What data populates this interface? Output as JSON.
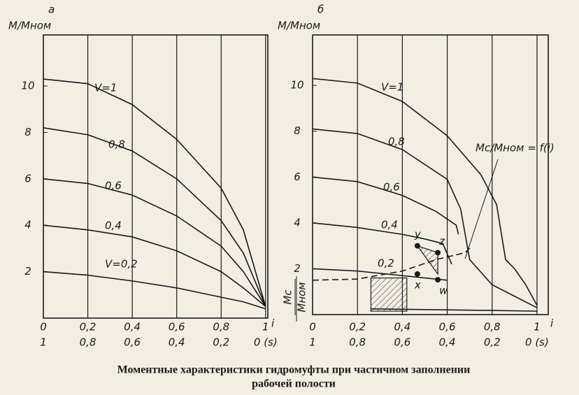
{
  "chart_data": [
    {
      "type": "line",
      "panel_label": "а",
      "ylabel": "M/Mном",
      "xlabel": "i",
      "xlim": [
        0,
        1.01
      ],
      "x2lim": [
        1,
        -0.01
      ],
      "ylim": [
        0,
        12.2
      ],
      "grid": "x",
      "xticks": [
        0,
        {
          "value": 0.2,
          "label": "0,2"
        },
        {
          "value": 0.4,
          "label": "0,4"
        },
        {
          "value": 0.6,
          "label": "0,6"
        },
        {
          "value": 0.8,
          "label": "0,8"
        },
        1
      ],
      "x2ticks": [
        1,
        {
          "value": 0.8,
          "label": "0,8"
        },
        {
          "value": 0.6,
          "label": "0,6"
        },
        {
          "value": 0.4,
          "label": "0,4"
        },
        {
          "value": 0.2,
          "label": "0,2"
        },
        {
          "value": 0,
          "label": "0 (s)"
        }
      ],
      "yticks": [
        2,
        4,
        6,
        8,
        10
      ],
      "series": [
        {
          "name": "V=1",
          "color": "#1a1a1a",
          "x": [
            0,
            0.2,
            0.4,
            0.6,
            0.8,
            0.9,
            1
          ],
          "values": [
            10.3,
            10.1,
            9.2,
            7.7,
            5.6,
            3.8,
            0.5
          ]
        },
        {
          "name": "0,8",
          "color": "#1a1a1a",
          "x": [
            0,
            0.2,
            0.4,
            0.6,
            0.8,
            0.9,
            1
          ],
          "values": [
            8.2,
            7.9,
            7.2,
            6.0,
            4.2,
            2.8,
            0.5
          ]
        },
        {
          "name": "0,6",
          "color": "#1a1a1a",
          "x": [
            0,
            0.2,
            0.4,
            0.6,
            0.8,
            0.9,
            1
          ],
          "values": [
            6.0,
            5.8,
            5.3,
            4.4,
            3.1,
            2.0,
            0.5
          ]
        },
        {
          "name": "0,4",
          "color": "#1a1a1a",
          "x": [
            0,
            0.2,
            0.4,
            0.6,
            0.8,
            0.9,
            1
          ],
          "values": [
            4.0,
            3.8,
            3.5,
            2.9,
            2.0,
            1.3,
            0.5
          ]
        },
        {
          "name": "V=0,2",
          "color": "#1a1a1a",
          "x": [
            0,
            0.2,
            0.4,
            0.6,
            0.8,
            0.9,
            1
          ],
          "values": [
            2.0,
            1.85,
            1.6,
            1.3,
            0.9,
            0.7,
            0.4
          ]
        }
      ]
    },
    {
      "type": "line",
      "panel_label": "б",
      "ylabel": "M/Mном",
      "xlabel": "i",
      "xlim": [
        0,
        1.05
      ],
      "x2lim": [
        1,
        -0.05
      ],
      "ylim": [
        0,
        12.2
      ],
      "grid": "x",
      "xticks": [
        0,
        {
          "value": 0.2,
          "label": "0,2"
        },
        {
          "value": 0.4,
          "label": "0,4"
        },
        {
          "value": 0.6,
          "label": "0,6"
        },
        {
          "value": 0.8,
          "label": "0,8"
        },
        1
      ],
      "x2ticks": [
        1,
        {
          "value": 0.8,
          "label": "0,8"
        },
        {
          "value": 0.6,
          "label": "0,6"
        },
        {
          "value": 0.4,
          "label": "0,4"
        },
        {
          "value": 0.2,
          "label": "0,2"
        },
        {
          "value": 0,
          "label": "0 (s)"
        }
      ],
      "yticks": [
        2,
        4,
        6,
        8,
        10
      ],
      "series": [
        {
          "name": "V=1",
          "color": "#1a1a1a",
          "x": [
            0,
            0.2,
            0.4,
            0.6,
            0.75,
            0.82,
            0.86,
            0.9,
            0.95,
            1
          ],
          "values": [
            10.3,
            10.1,
            9.3,
            7.8,
            6.1,
            4.8,
            2.4,
            2.0,
            1.3,
            0.4
          ]
        },
        {
          "name": "0,8",
          "color": "#1a1a1a",
          "x": [
            0,
            0.2,
            0.4,
            0.6,
            0.66,
            0.7,
            0.8,
            0.9,
            1
          ],
          "values": [
            8.1,
            7.9,
            7.2,
            5.9,
            4.6,
            2.4,
            1.3,
            0.8,
            0.3
          ]
        },
        {
          "name": "0,6",
          "color": "#1a1a1a",
          "x": [
            0,
            0.2,
            0.4,
            0.55,
            0.64,
            0.65
          ],
          "values": [
            6.0,
            5.8,
            5.2,
            4.5,
            3.9,
            3.5
          ]
        },
        {
          "name": "0,4",
          "color": "#1a1a1a",
          "x": [
            0,
            0.2,
            0.4,
            0.5,
            0.58,
            0.62
          ],
          "values": [
            4.0,
            3.8,
            3.5,
            3.3,
            3.1,
            2.2
          ]
        },
        {
          "name": "0,2",
          "color": "#1a1a1a",
          "x": [
            0,
            0.2,
            0.35,
            0.5,
            0.6
          ],
          "values": [
            2.0,
            1.9,
            1.75,
            1.6,
            1.5
          ]
        }
      ],
      "base_curve": {
        "x": [
          0.26,
          0.5,
          0.8,
          1
        ],
        "values": [
          0.25,
          0.22,
          0.18,
          0.15
        ]
      },
      "dashed_curve": {
        "x": [
          0,
          0.2,
          0.4,
          0.55,
          0.68,
          0.7
        ],
        "values": [
          1.5,
          1.55,
          1.9,
          2.4,
          2.7,
          2.9
        ]
      },
      "dashed_label": "Mc/Mном = f(i)",
      "mc_label": {
        "num": "Mc",
        "den": "Mном"
      },
      "points": [
        {
          "label": "y",
          "x": 0.467,
          "y": 3.0
        },
        {
          "label": "z",
          "x": 0.558,
          "y": 2.7
        },
        {
          "label": "x",
          "x": 0.467,
          "y": 1.77
        },
        {
          "label": "w",
          "x": 0.558,
          "y": 1.52
        }
      ],
      "hatched": [
        {
          "x": [
            0.26,
            0.42,
            0.42,
            0.26
          ],
          "y": [
            0.15,
            0.15,
            1.6,
            1.6
          ]
        },
        {
          "x": [
            0.467,
            0.558,
            0.558
          ],
          "y": [
            3.0,
            2.7,
            1.77
          ]
        }
      ]
    }
  ],
  "caption": [
    "Моментные характеристики гидромуфты при частичном заполнении",
    "рабочей полости"
  ]
}
